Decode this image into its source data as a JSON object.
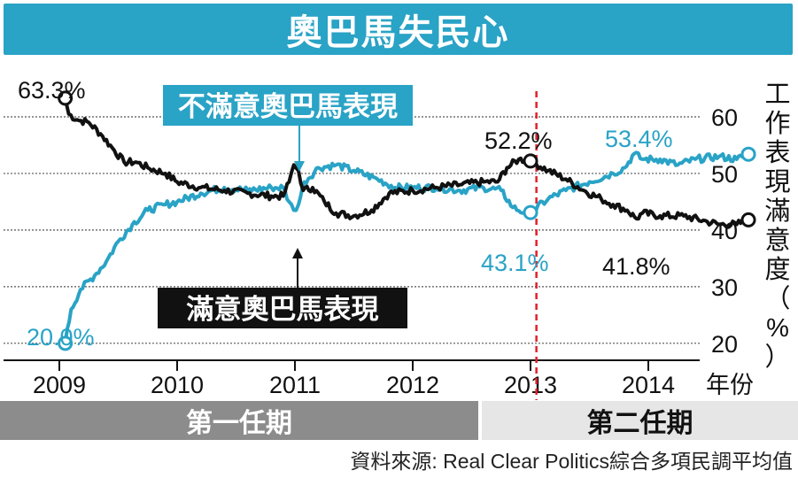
{
  "title": "奧巴馬失民心",
  "source": "資料來源: Real Clear Politics綜合多項民調平均值",
  "terms": {
    "first": "第一任期",
    "second": "第二任期"
  },
  "colors": {
    "approve": "#111111",
    "disapprove": "#29a3c6",
    "divider": "#e0202a",
    "grid": "#555555",
    "title_bg": "#29a3c6"
  },
  "chart_data": {
    "type": "line",
    "ylabel": "工作表現滿意度（%）",
    "xunit": "年份",
    "ylim": [
      17,
      65
    ],
    "yticks": [
      20,
      30,
      40,
      50,
      60
    ],
    "xticks": [
      "2009",
      "2010",
      "2011",
      "2012",
      "2013",
      "2014"
    ],
    "second_term_start": 2013.05,
    "series": [
      {
        "name": "滿意奧巴馬表現",
        "key": "approve",
        "points": [
          [
            2009.05,
            63.3
          ],
          [
            2009.08,
            60.5
          ],
          [
            2009.15,
            59.5
          ],
          [
            2009.25,
            59.0
          ],
          [
            2009.35,
            57.0
          ],
          [
            2009.45,
            54.5
          ],
          [
            2009.55,
            52.0
          ],
          [
            2009.65,
            52.0
          ],
          [
            2009.75,
            51.0
          ],
          [
            2009.9,
            50.0
          ],
          [
            2010.0,
            48.5
          ],
          [
            2010.2,
            47.5
          ],
          [
            2010.4,
            47.0
          ],
          [
            2010.6,
            46.5
          ],
          [
            2010.8,
            46.0
          ],
          [
            2010.9,
            46.0
          ],
          [
            2010.95,
            48.5
          ],
          [
            2010.99,
            51.5
          ],
          [
            2011.03,
            50.5
          ],
          [
            2011.07,
            47.0
          ],
          [
            2011.15,
            47.5
          ],
          [
            2011.25,
            45.0
          ],
          [
            2011.35,
            43.0
          ],
          [
            2011.5,
            42.5
          ],
          [
            2011.65,
            43.5
          ],
          [
            2011.8,
            46.5
          ],
          [
            2012.0,
            47.0
          ],
          [
            2012.2,
            47.5
          ],
          [
            2012.4,
            48.0
          ],
          [
            2012.6,
            48.5
          ],
          [
            2012.72,
            48.5
          ],
          [
            2012.8,
            51.0
          ],
          [
            2012.9,
            52.5
          ],
          [
            2013.0,
            52.2
          ],
          [
            2013.15,
            50.5
          ],
          [
            2013.3,
            49.0
          ],
          [
            2013.45,
            47.0
          ],
          [
            2013.6,
            45.5
          ],
          [
            2013.7,
            44.5
          ],
          [
            2013.82,
            43.5
          ],
          [
            2013.9,
            42.0
          ],
          [
            2013.95,
            43.0
          ],
          [
            2014.1,
            42.5
          ],
          [
            2014.3,
            42.5
          ],
          [
            2014.5,
            41.5
          ],
          [
            2014.6,
            41.0
          ],
          [
            2014.75,
            41.0
          ],
          [
            2014.85,
            41.8
          ]
        ]
      },
      {
        "name": "不滿意奧巴馬表現",
        "key": "disapprove",
        "points": [
          [
            2009.05,
            20.0
          ],
          [
            2009.1,
            26.0
          ],
          [
            2009.18,
            29.5
          ],
          [
            2009.3,
            32.0
          ],
          [
            2009.4,
            34.5
          ],
          [
            2009.5,
            38.0
          ],
          [
            2009.62,
            41.0
          ],
          [
            2009.75,
            43.5
          ],
          [
            2009.9,
            44.5
          ],
          [
            2010.0,
            45.0
          ],
          [
            2010.2,
            46.5
          ],
          [
            2010.4,
            47.5
          ],
          [
            2010.6,
            47.0
          ],
          [
            2010.8,
            47.5
          ],
          [
            2010.9,
            47.5
          ],
          [
            2010.95,
            45.0
          ],
          [
            2010.99,
            43.5
          ],
          [
            2011.03,
            44.5
          ],
          [
            2011.08,
            48.5
          ],
          [
            2011.2,
            51.0
          ],
          [
            2011.35,
            51.5
          ],
          [
            2011.5,
            50.5
          ],
          [
            2011.7,
            49.0
          ],
          [
            2011.85,
            47.5
          ],
          [
            2012.0,
            47.5
          ],
          [
            2012.2,
            47.5
          ],
          [
            2012.4,
            47.0
          ],
          [
            2012.6,
            47.5
          ],
          [
            2012.75,
            47.0
          ],
          [
            2012.85,
            44.0
          ],
          [
            2012.95,
            43.1
          ],
          [
            2013.0,
            43.1
          ],
          [
            2013.15,
            45.5
          ],
          [
            2013.3,
            47.0
          ],
          [
            2013.5,
            48.5
          ],
          [
            2013.7,
            50.0
          ],
          [
            2013.8,
            51.0
          ],
          [
            2013.88,
            53.5
          ],
          [
            2013.95,
            52.5
          ],
          [
            2014.1,
            52.5
          ],
          [
            2014.25,
            51.5
          ],
          [
            2014.4,
            52.5
          ],
          [
            2014.6,
            53.0
          ],
          [
            2014.75,
            52.5
          ],
          [
            2014.85,
            53.4
          ]
        ]
      }
    ],
    "labels": {
      "start_approve": "63.3%",
      "start_disapprove": "20.0%",
      "turn_approve": "52.2%",
      "turn_disapprove": "43.1%",
      "end_approve": "41.8%",
      "end_disapprove": "53.4%"
    }
  }
}
